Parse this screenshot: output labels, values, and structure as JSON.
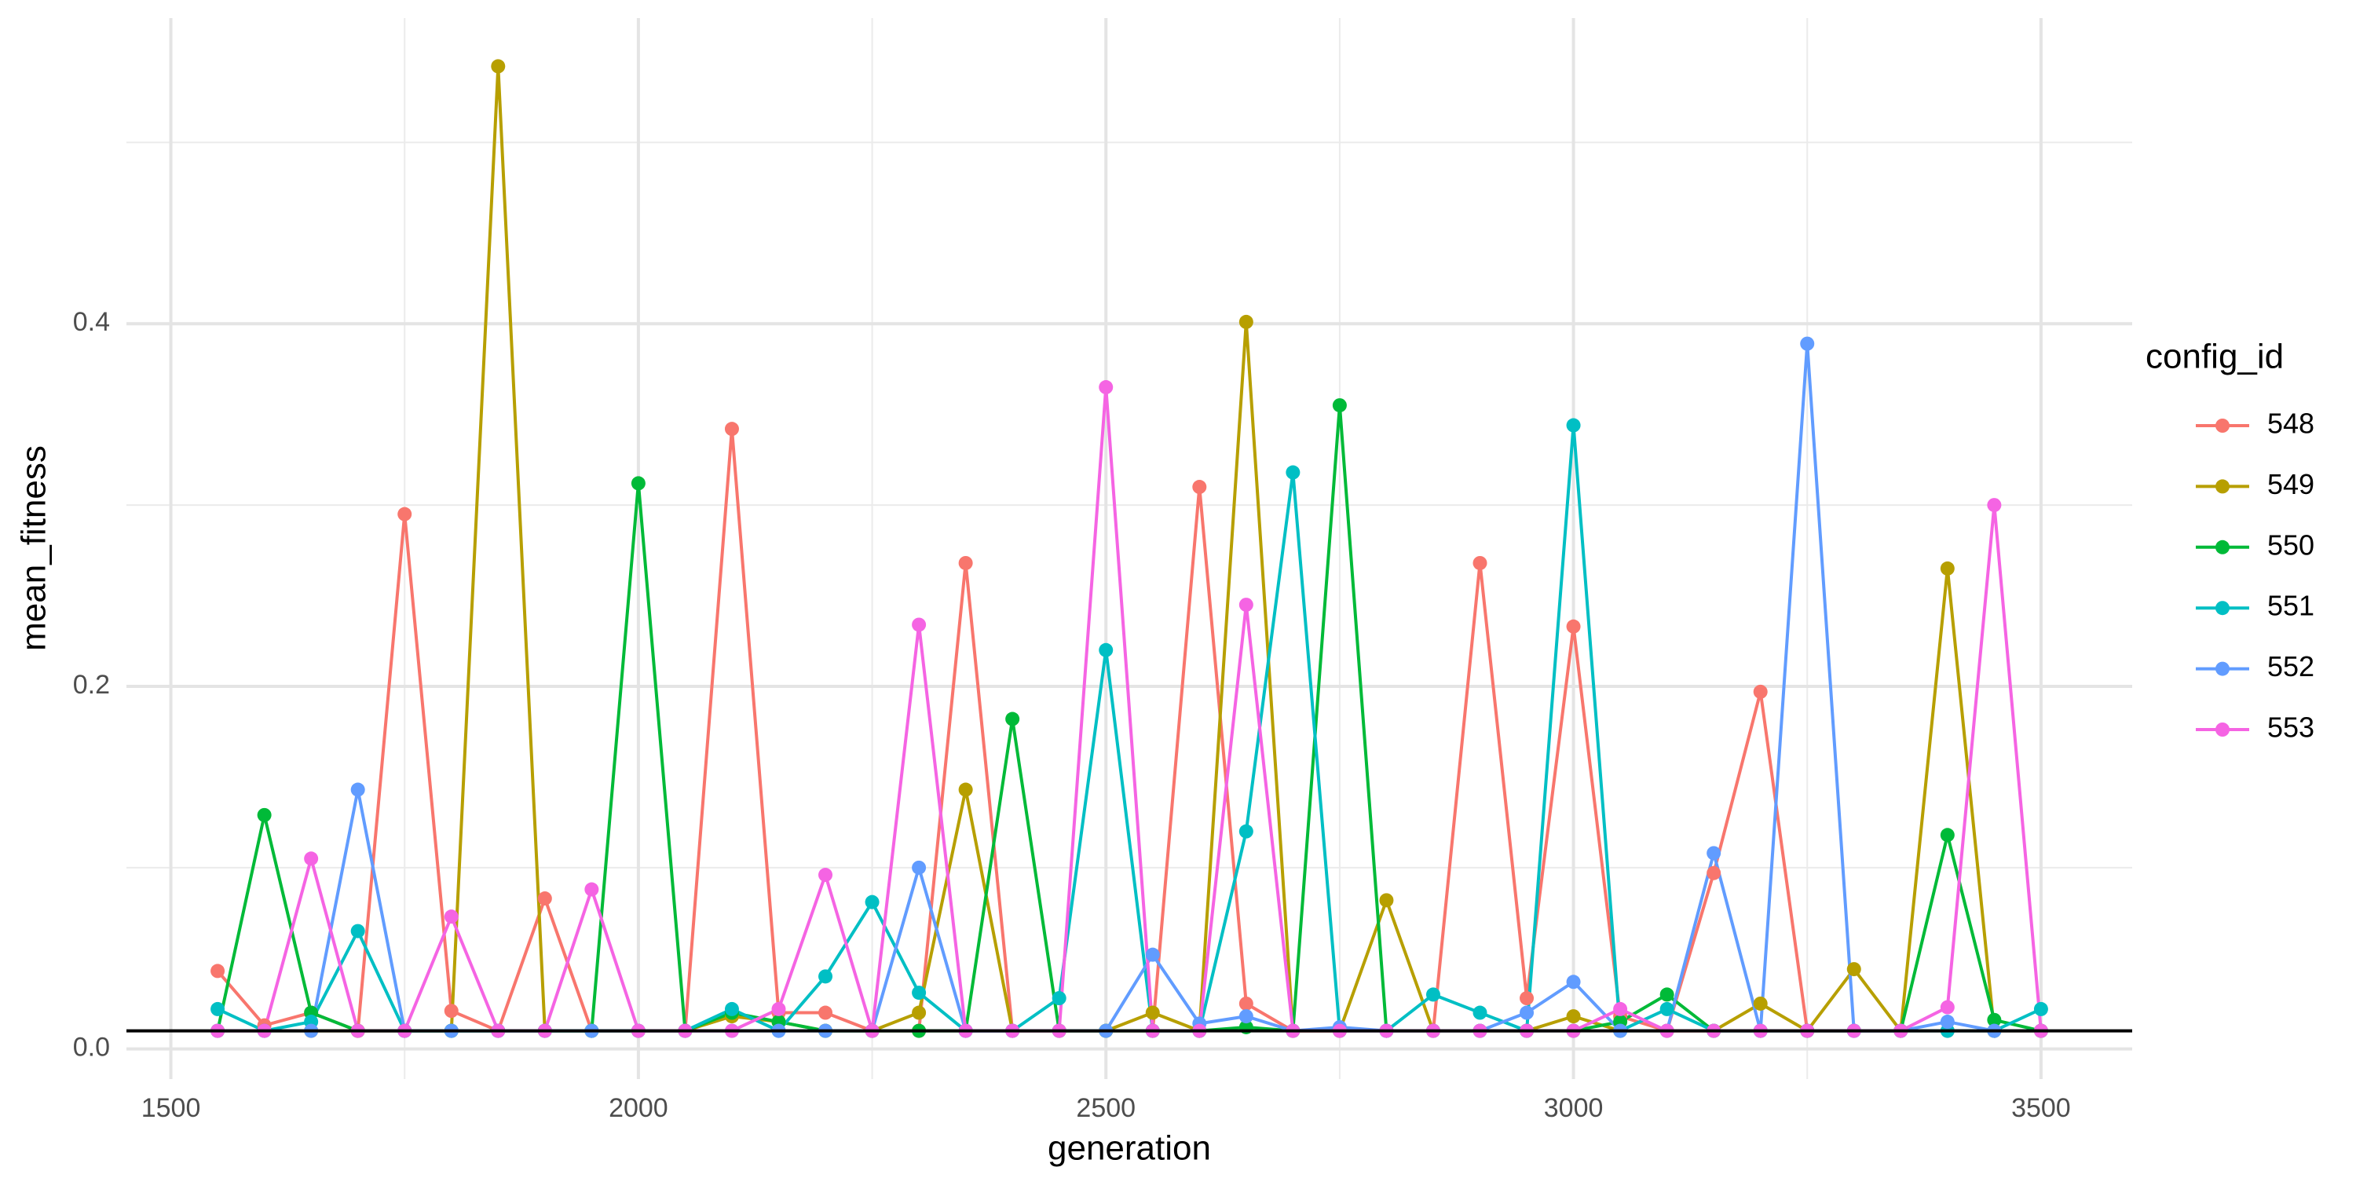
{
  "chart_data": {
    "type": "line",
    "x_label": "generation",
    "y_label": "mean_fitness",
    "legend_title": "config_id",
    "x": [
      1550,
      1600,
      1650,
      1700,
      1750,
      1800,
      1850,
      1900,
      1950,
      2000,
      2050,
      2100,
      2150,
      2200,
      2250,
      2300,
      2350,
      2400,
      2450,
      2500,
      2550,
      2600,
      2650,
      2700,
      2750,
      2800,
      2850,
      2900,
      2950,
      3000,
      3050,
      3100,
      3150,
      3200,
      3250,
      3300,
      3350,
      3400,
      3450,
      3500
    ],
    "series": [
      {
        "name": "548",
        "color": "#F8766D",
        "values": [
          0.043,
          0.013,
          0.02,
          0.01,
          0.295,
          0.021,
          0.01,
          0.083,
          0.01,
          0.01,
          0.01,
          0.342,
          0.02,
          0.02,
          0.01,
          0.01,
          0.268,
          0.01,
          0.01,
          0.01,
          0.01,
          0.31,
          0.025,
          0.01,
          0.01,
          0.01,
          0.01,
          0.268,
          0.028,
          0.233,
          0.018,
          0.01,
          0.097,
          0.197,
          0.01,
          0.01,
          0.01,
          0.01,
          0.01,
          0.01
        ]
      },
      {
        "name": "549",
        "color": "#B79F00",
        "values": [
          0.01,
          0.01,
          0.01,
          0.01,
          0.01,
          0.01,
          0.542,
          0.01,
          0.01,
          0.01,
          0.01,
          0.018,
          0.015,
          0.01,
          0.01,
          0.02,
          0.143,
          0.01,
          0.01,
          0.01,
          0.02,
          0.01,
          0.401,
          0.01,
          0.01,
          0.082,
          0.01,
          0.01,
          0.01,
          0.018,
          0.01,
          0.01,
          0.01,
          0.025,
          0.01,
          0.044,
          0.01,
          0.265,
          0.01,
          0.01
        ]
      },
      {
        "name": "550",
        "color": "#00BA38",
        "values": [
          0.01,
          0.129,
          0.02,
          0.01,
          0.01,
          0.01,
          0.01,
          0.01,
          0.01,
          0.312,
          0.01,
          0.02,
          0.015,
          0.01,
          0.01,
          0.01,
          0.01,
          0.182,
          0.01,
          0.01,
          0.01,
          0.01,
          0.012,
          0.01,
          0.355,
          0.01,
          0.01,
          0.01,
          0.01,
          0.01,
          0.015,
          0.03,
          0.01,
          0.01,
          0.01,
          0.01,
          0.01,
          0.118,
          0.016,
          0.01
        ]
      },
      {
        "name": "551",
        "color": "#00BFC4",
        "values": [
          0.022,
          0.01,
          0.015,
          0.065,
          0.01,
          0.01,
          0.01,
          0.01,
          0.01,
          0.01,
          0.01,
          0.022,
          0.01,
          0.04,
          0.081,
          0.031,
          0.01,
          0.01,
          0.028,
          0.22,
          0.01,
          0.01,
          0.12,
          0.318,
          0.01,
          0.01,
          0.03,
          0.02,
          0.01,
          0.344,
          0.01,
          0.022,
          0.01,
          0.01,
          0.01,
          0.01,
          0.01,
          0.01,
          0.01,
          0.022
        ]
      },
      {
        "name": "552",
        "color": "#619CFF",
        "values": [
          0.01,
          0.01,
          0.01,
          0.143,
          0.01,
          0.01,
          0.01,
          0.01,
          0.01,
          0.01,
          0.01,
          0.01,
          0.01,
          0.01,
          0.01,
          0.1,
          0.01,
          0.01,
          0.01,
          0.01,
          0.052,
          0.014,
          0.018,
          0.01,
          0.012,
          0.01,
          0.01,
          0.01,
          0.02,
          0.037,
          0.01,
          0.01,
          0.108,
          0.01,
          0.389,
          0.01,
          0.01,
          0.015,
          0.01,
          0.01
        ]
      },
      {
        "name": "553",
        "color": "#F564E3",
        "values": [
          0.01,
          0.01,
          0.105,
          0.01,
          0.01,
          0.073,
          0.01,
          0.01,
          0.088,
          0.01,
          0.01,
          0.01,
          0.022,
          0.096,
          0.01,
          0.234,
          0.01,
          0.01,
          0.01,
          0.365,
          0.01,
          0.01,
          0.245,
          0.01,
          0.01,
          0.01,
          0.01,
          0.01,
          0.01,
          0.01,
          0.022,
          0.01,
          0.01,
          0.01,
          0.01,
          0.01,
          0.01,
          0.023,
          0.3,
          0.01
        ]
      }
    ],
    "hline": 0.01,
    "xlim": [
      1452.5,
      3597.5
    ],
    "ylim": [
      -0.0166,
      0.5686
    ],
    "xticks": [
      1500,
      2000,
      2500,
      3000,
      3500
    ],
    "yticks": [
      {
        "value": 0,
        "label": "0.0"
      },
      0.2,
      0.4
    ],
    "x_minor_grid": [
      1750,
      2250,
      2750,
      3250
    ],
    "y_minor_grid": [
      0.1,
      0.3,
      0.5
    ],
    "grid": true,
    "legend_position": "right"
  }
}
